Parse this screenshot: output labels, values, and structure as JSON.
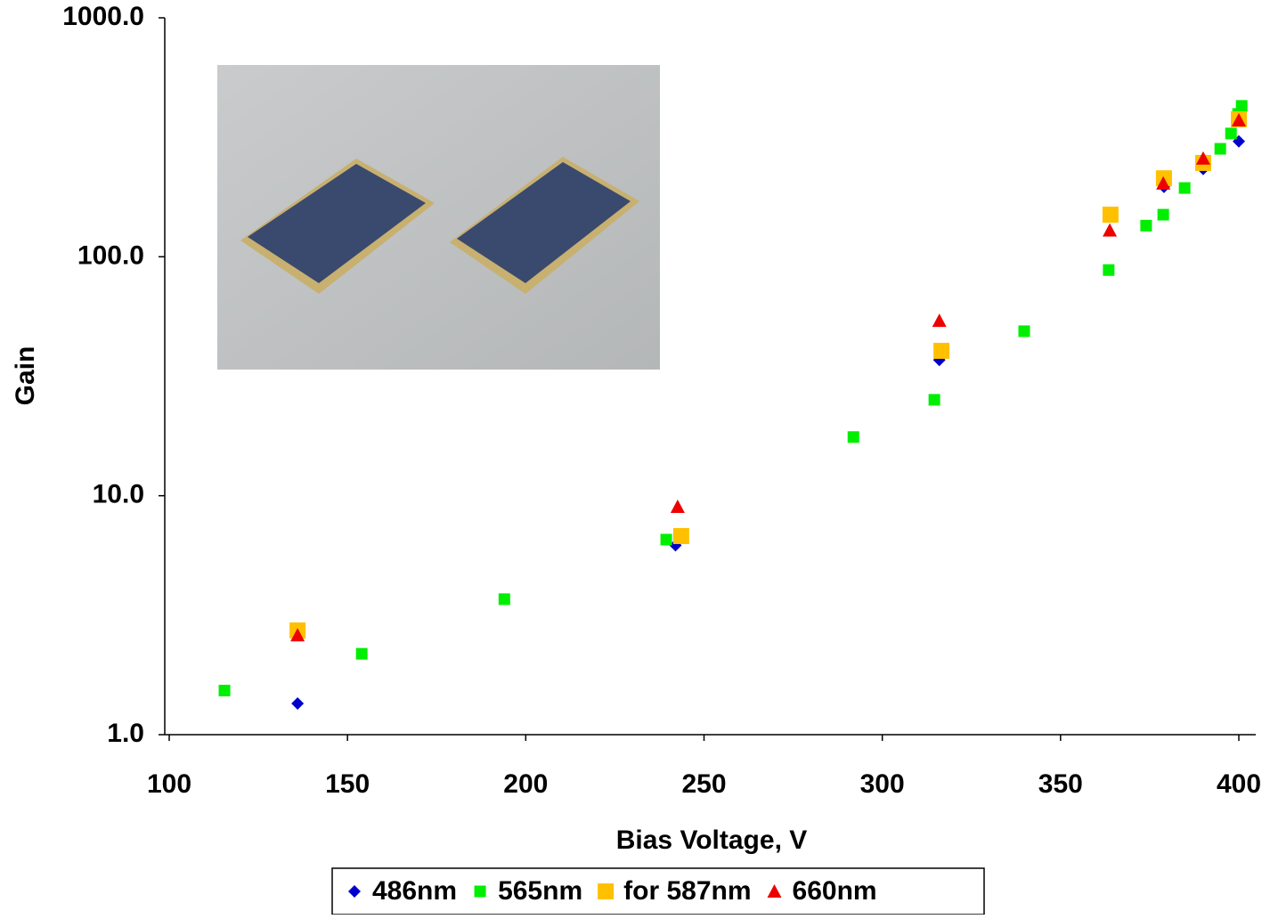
{
  "chart_data": {
    "type": "scatter",
    "x_label": "Bias Voltage, V",
    "y_label": "Gain",
    "xlim": [
      100,
      400
    ],
    "xticks": [
      100,
      150,
      200,
      250,
      300,
      350,
      400
    ],
    "ylim": [
      1,
      1000
    ],
    "y_scale": "log",
    "yticks": [
      {
        "value": 1,
        "label": "1.0"
      },
      {
        "value": 10,
        "label": "10.0"
      },
      {
        "value": 100,
        "label": "100.0"
      },
      {
        "value": 1000,
        "label": "1000.0"
      }
    ],
    "legend": "bottom",
    "series": [
      {
        "name": "486nm",
        "color": "#0000cc",
        "marker": "diamond",
        "x": [
          136,
          242,
          316,
          379,
          390,
          400
        ],
        "values": [
          1.35,
          6.2,
          37,
          196,
          233,
          304
        ]
      },
      {
        "name": "565nm",
        "color": "#00ee00",
        "marker": "square",
        "x": [
          115.5,
          154,
          194,
          239.4,
          291.9,
          314.6,
          339.8,
          363.5,
          374,
          378.8,
          384.8,
          394.8,
          397.8,
          399.8,
          400.8
        ],
        "values": [
          1.53,
          2.18,
          3.69,
          6.55,
          17.6,
          25.2,
          48.8,
          88,
          135,
          150,
          194,
          283,
          328,
          396,
          428
        ]
      },
      {
        "name": "for 587nm",
        "color": "#ffc000",
        "marker": "big-square",
        "x": [
          136,
          243.6,
          316.6,
          364,
          379,
          390,
          400
        ],
        "values": [
          2.73,
          6.78,
          40.4,
          150,
          213,
          247,
          376
        ]
      },
      {
        "name": "660nm",
        "color": "#ee0000",
        "marker": "triangle",
        "x": [
          136,
          242.6,
          316,
          363.8,
          378.8,
          390,
          400
        ],
        "values": [
          2.61,
          9.0,
          54,
          129,
          203,
          258,
          373
        ]
      }
    ]
  }
}
